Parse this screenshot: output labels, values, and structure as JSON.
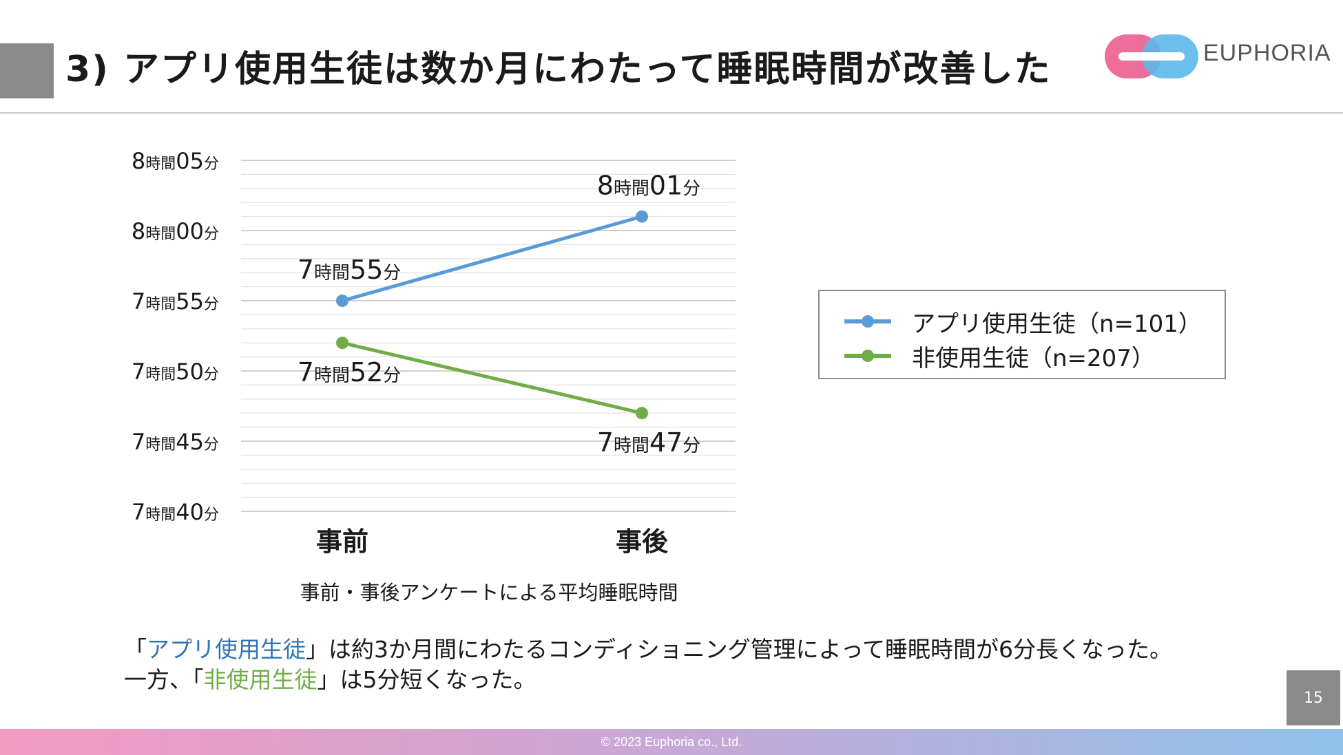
{
  "header": {
    "title": "3) アプリ使用生徒は数か月にわたって睡眠時間が改善した",
    "logo_text": "EUPHORIA"
  },
  "chart_data": {
    "type": "line",
    "categories": [
      "事前",
      "事後"
    ],
    "series": [
      {
        "name": "アプリ使用生徒（n=101）",
        "values": [
          475,
          481
        ],
        "labels": [
          "7時間55分",
          "8時間01分"
        ],
        "color": "#5b9bd5"
      },
      {
        "name": "非使用生徒（n=207）",
        "values": [
          472,
          467
        ],
        "labels": [
          "7時間52分",
          "7時間47分"
        ],
        "color": "#70ad47"
      }
    ],
    "y_ticks": [
      {
        "value": 485,
        "label": "8時間05分"
      },
      {
        "value": 480,
        "label": "8時間00分"
      },
      {
        "value": 475,
        "label": "7時間55分"
      },
      {
        "value": 470,
        "label": "7時間50分"
      },
      {
        "value": 465,
        "label": "7時間45分"
      },
      {
        "value": 460,
        "label": "7時間40分"
      }
    ],
    "ylim": [
      460,
      485
    ],
    "y_unit": "minutes",
    "grid": true,
    "minor_grid_step": 1,
    "legend_position": "right"
  },
  "subtitle": "事前・事後アンケートによる平均睡眠時間",
  "caption": {
    "line1_open": "「",
    "line1_highlight": "アプリ使用生徒",
    "line1_rest": "」は約3か月間にわたるコンディショニング管理によって睡眠時間が6分長くなった。",
    "line2_prefix": "一方、「",
    "line2_highlight": "非使用生徒",
    "line2_rest": "」は5分短くなった。"
  },
  "page_number": "15",
  "footer": "© 2023 Euphoria co., Ltd.",
  "colors": {
    "accent_blue": "#2e75b6",
    "accent_green": "#70ad47",
    "gray_box": "#8a8a8a"
  }
}
